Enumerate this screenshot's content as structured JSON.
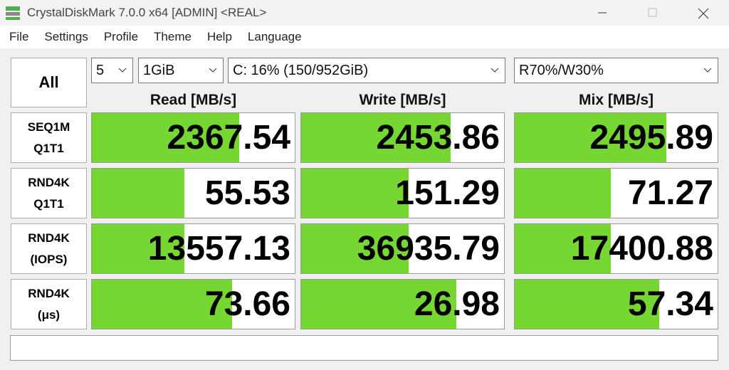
{
  "window": {
    "title": "CrystalDiskMark 7.0.0 x64 [ADMIN] <REAL>"
  },
  "menu": [
    "File",
    "Settings",
    "Profile",
    "Theme",
    "Help",
    "Language"
  ],
  "controls": {
    "all": "All",
    "count": "5",
    "size": "1GiB",
    "drive": "C: 16% (150/952GiB)",
    "mix": "R70%/W30%"
  },
  "columns": [
    "Read [MB/s]",
    "Write [MB/s]",
    "Mix [MB/s]"
  ],
  "rows": [
    {
      "label": [
        "SEQ1M",
        "Q1T1"
      ],
      "values": [
        "2367.54",
        "2453.86",
        "2495.89"
      ]
    },
    {
      "label": [
        "RND4K",
        "Q1T1"
      ],
      "values": [
        "55.53",
        "151.29",
        "71.27"
      ]
    },
    {
      "label": [
        "RND4K",
        "(IOPS)"
      ],
      "values": [
        "13557.13",
        "36935.79",
        "17400.88"
      ]
    },
    {
      "label": [
        "RND4K",
        "(μs)"
      ],
      "values": [
        "73.66",
        "26.98",
        "57.34"
      ]
    }
  ]
}
